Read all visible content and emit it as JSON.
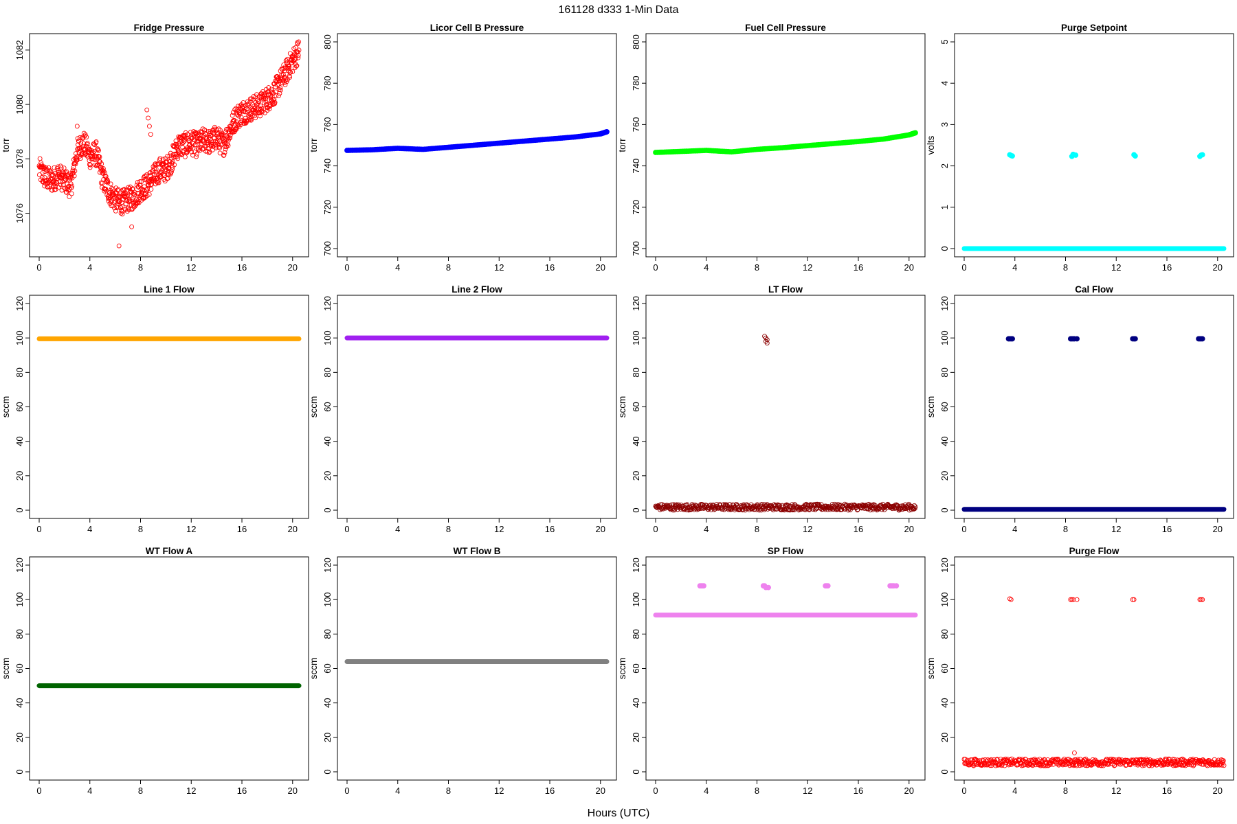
{
  "figure": {
    "title": "161128   d333   1-Min Data",
    "xlabel": "Hours (UTC)"
  },
  "chart_data": [
    {
      "type": "scatter",
      "title": "Fridge Pressure",
      "ylabel": "torr",
      "color": "#ff0000",
      "marker": "open-circle",
      "xlim": [
        0,
        20.5
      ],
      "ylim": [
        1074.7,
        1082.3
      ],
      "xticks": [
        0,
        4,
        8,
        12,
        16,
        20
      ],
      "yticks": [
        1076,
        1078,
        1080,
        1082
      ],
      "series": [
        {
          "x": [
            0,
            0.5,
            1,
            1.5,
            2,
            2.5,
            3,
            3.5,
            4,
            4.5,
            5,
            5.5,
            6,
            6.5,
            7,
            7.5,
            8,
            8.5,
            9,
            9.5,
            10,
            10.5,
            11,
            11.5,
            12,
            12.5,
            13,
            13.5,
            14,
            14.5,
            15,
            15.5,
            16,
            16.5,
            17,
            17.5,
            18,
            18.5,
            19,
            19.5,
            20,
            20.5
          ],
          "y": [
            1077.6,
            1077.3,
            1077.2,
            1077.4,
            1077.2,
            1077.0,
            1078.3,
            1078.6,
            1078.1,
            1078.2,
            1077.3,
            1076.8,
            1076.5,
            1076.4,
            1076.5,
            1076.6,
            1076.9,
            1077.0,
            1077.3,
            1077.6,
            1077.6,
            1078.0,
            1078.5,
            1078.5,
            1078.6,
            1078.5,
            1078.7,
            1078.6,
            1078.8,
            1078.5,
            1079.0,
            1079.5,
            1079.7,
            1079.8,
            1079.9,
            1080.0,
            1080.2,
            1080.4,
            1080.8,
            1081.2,
            1081.6,
            1082.0
          ]
        }
      ],
      "extra_points": {
        "x": [
          6.3,
          7.3,
          8.5,
          8.6,
          8.7,
          8.8,
          3.0
        ],
        "y": [
          1074.8,
          1075.5,
          1079.8,
          1079.5,
          1079.2,
          1078.9,
          1079.2
        ]
      }
    },
    {
      "type": "scatter",
      "title": "Licor Cell B Pressure",
      "ylabel": "torr",
      "color": "#0000ff",
      "marker": "filled",
      "xlim": [
        0,
        20.5
      ],
      "ylim": [
        700,
        800
      ],
      "xticks": [
        0,
        4,
        8,
        12,
        16,
        20
      ],
      "yticks": [
        700,
        720,
        740,
        760,
        780,
        800
      ],
      "series": [
        {
          "x": [
            0,
            2,
            4,
            6,
            8,
            10,
            12,
            14,
            16,
            18,
            20,
            20.5
          ],
          "y": [
            747.5,
            747.8,
            748.5,
            748.0,
            749.0,
            750.0,
            751.0,
            752.0,
            753.0,
            754.0,
            755.5,
            756.5
          ]
        }
      ]
    },
    {
      "type": "scatter",
      "title": "Fuel Cell Pressure",
      "ylabel": "torr",
      "color": "#00ff00",
      "marker": "filled",
      "xlim": [
        0,
        20.5
      ],
      "ylim": [
        700,
        800
      ],
      "xticks": [
        0,
        4,
        8,
        12,
        16,
        20
      ],
      "yticks": [
        700,
        720,
        740,
        760,
        780,
        800
      ],
      "series": [
        {
          "x": [
            0,
            2,
            4,
            6,
            8,
            10,
            12,
            14,
            16,
            18,
            20,
            20.5
          ],
          "y": [
            746.5,
            747.0,
            747.5,
            746.8,
            748.0,
            748.8,
            749.8,
            750.8,
            751.8,
            753.0,
            755.0,
            756.0
          ]
        }
      ]
    },
    {
      "type": "scatter",
      "title": "Purge Setpoint",
      "ylabel": "volts",
      "color": "#00ffff",
      "marker": "filled",
      "xlim": [
        0,
        20.5
      ],
      "ylim": [
        0,
        5
      ],
      "xticks": [
        0,
        4,
        8,
        12,
        16,
        20
      ],
      "yticks": [
        0,
        1,
        2,
        3,
        4,
        5
      ],
      "baseline": {
        "x": [
          0,
          20.5
        ],
        "y": 0
      },
      "series": [
        {
          "x": [
            3.6,
            3.7,
            3.8,
            8.5,
            8.6,
            8.8,
            13.4,
            13.5,
            18.6,
            18.7,
            18.8
          ],
          "y": [
            2.27,
            2.25,
            2.24,
            2.23,
            2.28,
            2.26,
            2.27,
            2.24,
            2.23,
            2.26,
            2.27
          ]
        }
      ]
    },
    {
      "type": "scatter",
      "title": "Line 1 Flow",
      "ylabel": "sccm",
      "color": "#ffa500",
      "marker": "filled",
      "xlim": [
        0,
        20.5
      ],
      "ylim": [
        0,
        120
      ],
      "xticks": [
        0,
        4,
        8,
        12,
        16,
        20
      ],
      "yticks": [
        0,
        20,
        40,
        60,
        80,
        100,
        120
      ],
      "baseline": {
        "x": [
          0,
          20.5
        ],
        "y": 99.5
      },
      "series": []
    },
    {
      "type": "scatter",
      "title": "Line 2 Flow",
      "ylabel": "sccm",
      "color": "#a020f0",
      "marker": "filled",
      "xlim": [
        0,
        20.5
      ],
      "ylim": [
        0,
        120
      ],
      "xticks": [
        0,
        4,
        8,
        12,
        16,
        20
      ],
      "yticks": [
        0,
        20,
        40,
        60,
        80,
        100,
        120
      ],
      "baseline": {
        "x": [
          0,
          20.5
        ],
        "y": 100
      },
      "series": []
    },
    {
      "type": "scatter",
      "title": "LT Flow",
      "ylabel": "sccm",
      "color": "#8b0000",
      "marker": "open-circle",
      "xlim": [
        0,
        20.5
      ],
      "ylim": [
        0,
        120
      ],
      "xticks": [
        0,
        4,
        8,
        12,
        16,
        20
      ],
      "yticks": [
        0,
        20,
        40,
        60,
        80,
        100,
        120
      ],
      "band": {
        "x": [
          0,
          20.5
        ],
        "ymin": 0,
        "ymax": 3.5
      },
      "series": [
        {
          "x": [
            8.6,
            8.7,
            8.8,
            8.7,
            8.8
          ],
          "y": [
            101,
            100,
            99,
            98,
            97
          ]
        }
      ]
    },
    {
      "type": "scatter",
      "title": "Cal Flow",
      "ylabel": "sccm",
      "color": "#000080",
      "marker": "filled",
      "xlim": [
        0,
        20.5
      ],
      "ylim": [
        0,
        120
      ],
      "xticks": [
        0,
        4,
        8,
        12,
        16,
        20
      ],
      "yticks": [
        0,
        20,
        40,
        60,
        80,
        100,
        120
      ],
      "baseline": {
        "x": [
          0,
          20.5
        ],
        "y": 0.5
      },
      "series": [
        {
          "x": [
            3.5,
            3.6,
            3.7,
            3.8,
            8.4,
            8.5,
            8.6,
            8.7,
            8.9,
            13.3,
            13.4,
            13.5,
            18.5,
            18.6,
            18.7,
            18.8
          ],
          "y": [
            99.5,
            99.5,
            99.5,
            99.5,
            99.5,
            99.5,
            99.5,
            99.5,
            99.5,
            99.5,
            99.5,
            99.5,
            99.5,
            99.5,
            99.5,
            99.5
          ]
        }
      ]
    },
    {
      "type": "scatter",
      "title": "WT Flow A",
      "ylabel": "sccm",
      "color": "#006400",
      "marker": "filled",
      "xlim": [
        0,
        20.5
      ],
      "ylim": [
        0,
        120
      ],
      "xticks": [
        0,
        4,
        8,
        12,
        16,
        20
      ],
      "yticks": [
        0,
        20,
        40,
        60,
        80,
        100,
        120
      ],
      "baseline": {
        "x": [
          0,
          20.5
        ],
        "y": 50
      },
      "series": []
    },
    {
      "type": "scatter",
      "title": "WT Flow B",
      "ylabel": "sccm",
      "color": "#808080",
      "marker": "filled",
      "xlim": [
        0,
        20.5
      ],
      "ylim": [
        0,
        120
      ],
      "xticks": [
        0,
        4,
        8,
        12,
        16,
        20
      ],
      "yticks": [
        0,
        20,
        40,
        60,
        80,
        100,
        120
      ],
      "baseline": {
        "x": [
          0,
          20.5
        ],
        "y": 64
      },
      "series": []
    },
    {
      "type": "scatter",
      "title": "SP Flow",
      "ylabel": "sccm",
      "color": "#ee82ee",
      "marker": "filled",
      "xlim": [
        0,
        20.5
      ],
      "ylim": [
        0,
        120
      ],
      "xticks": [
        0,
        4,
        8,
        12,
        16,
        20
      ],
      "yticks": [
        0,
        20,
        40,
        60,
        80,
        100,
        120
      ],
      "baseline": {
        "x": [
          0,
          20.5
        ],
        "y": 91
      },
      "series": [
        {
          "x": [
            3.5,
            3.6,
            3.7,
            3.8,
            8.5,
            8.6,
            8.7,
            8.9,
            13.4,
            13.5,
            13.6,
            18.5,
            18.6,
            18.7,
            18.8,
            19.0
          ],
          "y": [
            108,
            108,
            108,
            108,
            108,
            108,
            107,
            107,
            108,
            108,
            108,
            108,
            108,
            108,
            108,
            108
          ]
        }
      ]
    },
    {
      "type": "scatter",
      "title": "Purge Flow",
      "ylabel": "sccm",
      "color": "#ff0000",
      "marker": "open-circle",
      "xlim": [
        0,
        20.5
      ],
      "ylim": [
        0,
        120
      ],
      "xticks": [
        0,
        4,
        8,
        12,
        16,
        20
      ],
      "yticks": [
        0,
        20,
        40,
        60,
        80,
        100,
        120
      ],
      "band": {
        "x": [
          0,
          20.5
        ],
        "ymin": 3.5,
        "ymax": 7.5
      },
      "series": [
        {
          "x": [
            3.6,
            3.7,
            8.4,
            8.5,
            8.6,
            8.9,
            13.3,
            13.4,
            18.6,
            18.7,
            18.8,
            8.7
          ],
          "y": [
            100.5,
            100,
            100,
            100,
            100,
            100,
            100,
            100,
            100,
            100,
            100,
            11
          ]
        }
      ]
    }
  ]
}
